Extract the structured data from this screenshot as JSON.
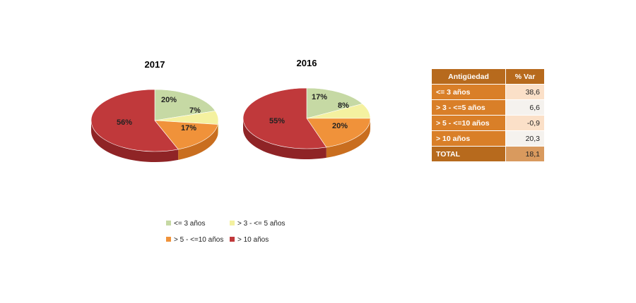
{
  "chart_data": [
    {
      "type": "pie",
      "title": "2017",
      "categories": [
        "<= 3 años",
        "> 3 - <= 5 años",
        "> 5 - <=10 años",
        "> 10 años"
      ],
      "values": [
        20,
        7,
        17,
        56
      ],
      "labels": [
        "20%",
        "7%",
        "17%",
        "56%"
      ]
    },
    {
      "type": "pie",
      "title": "2016",
      "categories": [
        "<= 3 años",
        "> 3 - <= 5 años",
        "> 5 - <=10 años",
        "> 10 años"
      ],
      "values": [
        17,
        8,
        20,
        55
      ],
      "labels": [
        "17%",
        "8%",
        "20%",
        "55%"
      ]
    },
    {
      "type": "table",
      "headers": [
        "Antigüedad",
        "% Var"
      ],
      "rows": [
        {
          "label": "<= 3 años",
          "value": "38,6"
        },
        {
          "label": "> 3 - <=5 años",
          "value": "6,6"
        },
        {
          "label": "> 5 - <=10 años",
          "value": "-0,9"
        },
        {
          "label": "> 10 años",
          "value": "20,3"
        },
        {
          "label": "TOTAL",
          "value": "18,1"
        }
      ]
    }
  ],
  "legend": {
    "items": [
      {
        "label": "<= 3 años",
        "color": "#c6d9a4"
      },
      {
        "label": "> 3 - <= 5 años",
        "color": "#f4f1a0"
      },
      {
        "label": "> 5 - <=10 años",
        "color": "#f0923a"
      },
      {
        "label": "> 10 años",
        "color": "#c0393b"
      }
    ]
  },
  "colors": {
    "top": [
      "#c6d9a4",
      "#f4f1a0",
      "#f0923a",
      "#c0393b"
    ],
    "side": [
      "#9fb57a",
      "#cfc96b",
      "#c96e1f",
      "#8f2426"
    ],
    "table_header": "#b76a1d",
    "table_label": "#d97f28"
  }
}
